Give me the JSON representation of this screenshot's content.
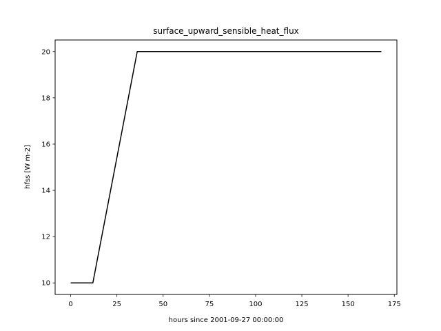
{
  "chart_data": {
    "type": "line",
    "title": "surface_upward_sensible_heat_flux",
    "xlabel": "hours since 2001-09-27 00:00:00",
    "ylabel": "hfss [W m-2]",
    "xlim": [
      -8.4,
      176.4
    ],
    "ylim": [
      9.5,
      20.5
    ],
    "x_ticks": [
      0,
      25,
      50,
      75,
      100,
      125,
      150,
      175
    ],
    "y_ticks": [
      10,
      12,
      14,
      16,
      18,
      20
    ],
    "grid": false,
    "legend": "none",
    "series": [
      {
        "color": "#000000",
        "x": [
          0,
          12,
          36,
          168
        ],
        "y": [
          10,
          10,
          20,
          20
        ]
      }
    ]
  }
}
